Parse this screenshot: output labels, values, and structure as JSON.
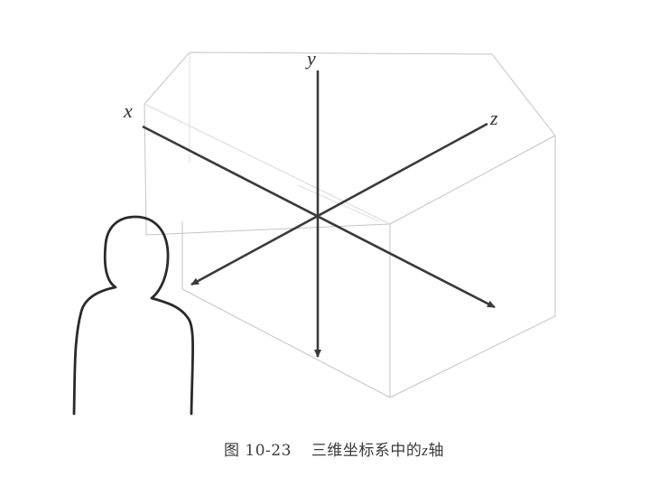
{
  "diagram": {
    "axes": {
      "x_label": "x",
      "y_label": "y",
      "z_label": "z"
    },
    "colors": {
      "axis": "#3a3a3a",
      "box": "#c4c4c4",
      "figure": "#2a2a2a"
    }
  },
  "caption": {
    "number": "图 10-23",
    "text_before": "三维坐标系中的",
    "variable": "z",
    "text_after": "轴"
  }
}
